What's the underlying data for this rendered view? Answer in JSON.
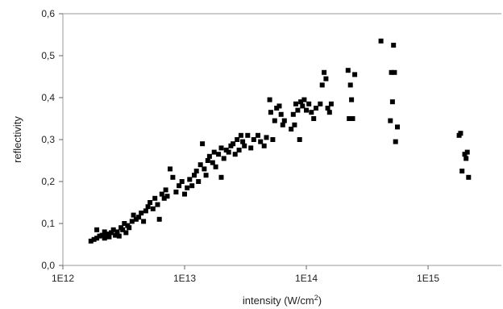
{
  "chart_data": {
    "type": "scatter",
    "xlabel": "intensity (W/cm",
    "xlabel_sup": "2",
    "xlabel_tail": ")",
    "ylabel": "reflectivity",
    "x_scale": "log",
    "xlim": [
      1000000000000.0,
      4000000000000000.0
    ],
    "ylim": [
      0,
      0.6
    ],
    "x_ticks": [
      {
        "value": 1000000000000.0,
        "label": "1E12"
      },
      {
        "value": 10000000000000.0,
        "label": "1E13"
      },
      {
        "value": 100000000000000.0,
        "label": "1E14"
      },
      {
        "value": 1000000000000000.0,
        "label": "1E15"
      }
    ],
    "y_ticks": [
      {
        "value": 0.0,
        "label": "0,0"
      },
      {
        "value": 0.1,
        "label": "0,1"
      },
      {
        "value": 0.2,
        "label": "0,2"
      },
      {
        "value": 0.3,
        "label": "0,3"
      },
      {
        "value": 0.4,
        "label": "0,4"
      },
      {
        "value": 0.5,
        "label": "0,5"
      },
      {
        "value": 0.6,
        "label": "0,6"
      }
    ],
    "grid": false,
    "marker_color": "#000000",
    "series": [
      {
        "points": [
          [
            1700000000000.0,
            0.058
          ],
          [
            1800000000000.0,
            0.062
          ],
          [
            1900000000000.0,
            0.065
          ],
          [
            1900000000000.0,
            0.085
          ],
          [
            2000000000000.0,
            0.07
          ],
          [
            2100000000000.0,
            0.072
          ],
          [
            2200000000000.0,
            0.065
          ],
          [
            2200000000000.0,
            0.08
          ],
          [
            2300000000000.0,
            0.075
          ],
          [
            2400000000000.0,
            0.068
          ],
          [
            2500000000000.0,
            0.078
          ],
          [
            2600000000000.0,
            0.085
          ],
          [
            2700000000000.0,
            0.072
          ],
          [
            2800000000000.0,
            0.08
          ],
          [
            2900000000000.0,
            0.07
          ],
          [
            3000000000000.0,
            0.09
          ],
          [
            3100000000000.0,
            0.085
          ],
          [
            3200000000000.0,
            0.1
          ],
          [
            3300000000000.0,
            0.078
          ],
          [
            3400000000000.0,
            0.095
          ],
          [
            3500000000000.0,
            0.09
          ],
          [
            3700000000000.0,
            0.105
          ],
          [
            3800000000000.0,
            0.12
          ],
          [
            4000000000000.0,
            0.11
          ],
          [
            4200000000000.0,
            0.115
          ],
          [
            4400000000000.0,
            0.125
          ],
          [
            4600000000000.0,
            0.105
          ],
          [
            4800000000000.0,
            0.13
          ],
          [
            5000000000000.0,
            0.14
          ],
          [
            5200000000000.0,
            0.15
          ],
          [
            5500000000000.0,
            0.135
          ],
          [
            5700000000000.0,
            0.16
          ],
          [
            6000000000000.0,
            0.145
          ],
          [
            6200000000000.0,
            0.11
          ],
          [
            6500000000000.0,
            0.17
          ],
          [
            6800000000000.0,
            0.16
          ],
          [
            7000000000000.0,
            0.18
          ],
          [
            7200000000000.0,
            0.165
          ],
          [
            7600000000000.0,
            0.23
          ],
          [
            8000000000000.0,
            0.21
          ],
          [
            8500000000000.0,
            0.175
          ],
          [
            9000000000000.0,
            0.19
          ],
          [
            9500000000000.0,
            0.2
          ],
          [
            10000000000000.0,
            0.17
          ],
          [
            10500000000000.0,
            0.185
          ],
          [
            11000000000000.0,
            0.205
          ],
          [
            11500000000000.0,
            0.19
          ],
          [
            12000000000000.0,
            0.215
          ],
          [
            12500000000000.0,
            0.225
          ],
          [
            13000000000000.0,
            0.2
          ],
          [
            13500000000000.0,
            0.24
          ],
          [
            14000000000000.0,
            0.29
          ],
          [
            14500000000000.0,
            0.23
          ],
          [
            15000000000000.0,
            0.215
          ],
          [
            15500000000000.0,
            0.25
          ],
          [
            16000000000000.0,
            0.26
          ],
          [
            17000000000000.0,
            0.245
          ],
          [
            17500000000000.0,
            0.27
          ],
          [
            18000000000000.0,
            0.235
          ],
          [
            19000000000000.0,
            0.265
          ],
          [
            20000000000000.0,
            0.28
          ],
          [
            20000000000000.0,
            0.21
          ],
          [
            21000000000000.0,
            0.255
          ],
          [
            22000000000000.0,
            0.275
          ],
          [
            23000000000000.0,
            0.27
          ],
          [
            24000000000000.0,
            0.285
          ],
          [
            25000000000000.0,
            0.29
          ],
          [
            26000000000000.0,
            0.265
          ],
          [
            27000000000000.0,
            0.3
          ],
          [
            28000000000000.0,
            0.275
          ],
          [
            29000000000000.0,
            0.31
          ],
          [
            30000000000000.0,
            0.295
          ],
          [
            31000000000000.0,
            0.285
          ],
          [
            33000000000000.0,
            0.31
          ],
          [
            35000000000000.0,
            0.28
          ],
          [
            37000000000000.0,
            0.3
          ],
          [
            40000000000000.0,
            0.31
          ],
          [
            42000000000000.0,
            0.295
          ],
          [
            45000000000000.0,
            0.285
          ],
          [
            47000000000000.0,
            0.305
          ],
          [
            50000000000000.0,
            0.395
          ],
          [
            51000000000000.0,
            0.365
          ],
          [
            53000000000000.0,
            0.3
          ],
          [
            55000000000000.0,
            0.345
          ],
          [
            57000000000000.0,
            0.375
          ],
          [
            60000000000000.0,
            0.38
          ],
          [
            62000000000000.0,
            0.36
          ],
          [
            64000000000000.0,
            0.335
          ],
          [
            66000000000000.0,
            0.345
          ],
          [
            75000000000000.0,
            0.325
          ],
          [
            78000000000000.0,
            0.36
          ],
          [
            80000000000000.0,
            0.335
          ],
          [
            82000000000000.0,
            0.385
          ],
          [
            85000000000000.0,
            0.37
          ],
          [
            88000000000000.0,
            0.3
          ],
          [
            90000000000000.0,
            0.39
          ],
          [
            93000000000000.0,
            0.38
          ],
          [
            96000000000000.0,
            0.395
          ],
          [
            100000000000000.0,
            0.37
          ],
          [
            105000000000000.0,
            0.385
          ],
          [
            110000000000000.0,
            0.365
          ],
          [
            115000000000000.0,
            0.35
          ],
          [
            120000000000000.0,
            0.375
          ],
          [
            130000000000000.0,
            0.385
          ],
          [
            135000000000000.0,
            0.43
          ],
          [
            140000000000000.0,
            0.46
          ],
          [
            145000000000000.0,
            0.445
          ],
          [
            150000000000000.0,
            0.375
          ],
          [
            155000000000000.0,
            0.365
          ],
          [
            160000000000000.0,
            0.385
          ],
          [
            220000000000000.0,
            0.465
          ],
          [
            225000000000000.0,
            0.35
          ],
          [
            230000000000000.0,
            0.43
          ],
          [
            235000000000000.0,
            0.395
          ],
          [
            240000000000000.0,
            0.35
          ],
          [
            250000000000000.0,
            0.455
          ],
          [
            410000000000000.0,
            0.535
          ],
          [
            490000000000000.0,
            0.345
          ],
          [
            500000000000000.0,
            0.46
          ],
          [
            510000000000000.0,
            0.39
          ],
          [
            520000000000000.0,
            0.525
          ],
          [
            530000000000000.0,
            0.46
          ],
          [
            540000000000000.0,
            0.295
          ],
          [
            560000000000000.0,
            0.33
          ],
          [
            1800000000000000.0,
            0.31
          ],
          [
            1850000000000000.0,
            0.315
          ],
          [
            1900000000000000.0,
            0.225
          ],
          [
            2000000000000000.0,
            0.265
          ],
          [
            2050000000000000.0,
            0.255
          ],
          [
            2100000000000000.0,
            0.27
          ],
          [
            2150000000000000.0,
            0.21
          ]
        ]
      }
    ]
  }
}
